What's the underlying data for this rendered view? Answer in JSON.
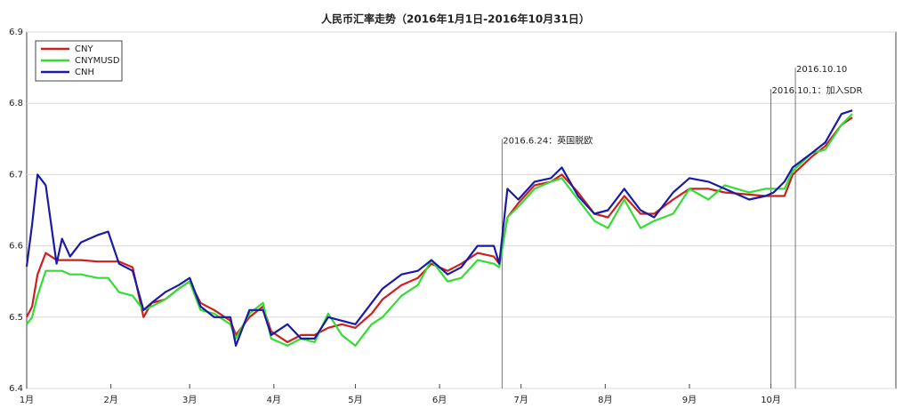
{
  "chart_data": {
    "type": "line",
    "title": "人民币汇率走势（2016年1月1日-2016年10月31日）",
    "x": [
      1,
      3,
      5,
      8,
      12,
      14,
      17,
      21,
      27,
      31,
      35,
      40,
      44,
      47,
      52,
      57,
      61,
      65,
      70,
      76,
      78,
      83,
      88,
      91,
      97,
      102,
      107,
      112,
      117,
      122,
      128,
      132,
      139,
      145,
      150,
      156,
      161,
      167,
      173,
      175,
      178,
      182,
      188,
      194,
      198,
      204,
      210,
      215,
      221,
      227,
      232,
      239,
      245,
      252,
      258,
      267,
      273,
      276,
      280,
      283,
      290,
      295,
      301,
      305
    ],
    "series": [
      {
        "name": "CNY",
        "color": "#cc1f1f",
        "values": [
          6.5,
          6.515,
          6.56,
          6.59,
          6.58,
          6.58,
          6.58,
          6.58,
          6.578,
          6.578,
          6.578,
          6.57,
          6.5,
          6.52,
          6.525,
          6.54,
          6.55,
          6.52,
          6.51,
          6.495,
          6.475,
          6.5,
          6.515,
          6.48,
          6.465,
          6.475,
          6.475,
          6.485,
          6.49,
          6.485,
          6.505,
          6.525,
          6.545,
          6.555,
          6.575,
          6.565,
          6.575,
          6.59,
          6.585,
          6.575,
          6.64,
          6.66,
          6.685,
          6.69,
          6.7,
          6.675,
          6.645,
          6.64,
          6.67,
          6.645,
          6.645,
          6.665,
          6.68,
          6.68,
          6.675,
          6.672,
          6.67,
          6.67,
          6.67,
          6.7,
          6.725,
          6.74,
          6.77,
          6.78
        ]
      },
      {
        "name": "CNYMUSD",
        "color": "#33dd33",
        "values": [
          6.49,
          6.5,
          6.53,
          6.565,
          6.565,
          6.565,
          6.56,
          6.56,
          6.555,
          6.555,
          6.535,
          6.53,
          6.51,
          6.515,
          6.525,
          6.54,
          6.55,
          6.51,
          6.505,
          6.49,
          6.47,
          6.505,
          6.52,
          6.47,
          6.46,
          6.47,
          6.465,
          6.505,
          6.475,
          6.46,
          6.49,
          6.5,
          6.53,
          6.545,
          6.58,
          6.55,
          6.555,
          6.58,
          6.575,
          6.57,
          6.64,
          6.655,
          6.68,
          6.69,
          6.695,
          6.665,
          6.635,
          6.625,
          6.665,
          6.625,
          6.635,
          6.645,
          6.68,
          6.665,
          6.685,
          6.675,
          6.68,
          6.68,
          6.68,
          6.705,
          6.73,
          6.735,
          6.77,
          6.785
        ]
      },
      {
        "name": "CNH",
        "color": "#1a1aa6",
        "values": [
          6.571,
          6.63,
          6.7,
          6.685,
          6.575,
          6.61,
          6.585,
          6.605,
          6.615,
          6.62,
          6.575,
          6.565,
          6.51,
          6.52,
          6.535,
          6.545,
          6.555,
          6.515,
          6.5,
          6.5,
          6.46,
          6.51,
          6.51,
          6.475,
          6.49,
          6.47,
          6.47,
          6.5,
          6.495,
          6.49,
          6.52,
          6.54,
          6.56,
          6.565,
          6.58,
          6.56,
          6.57,
          6.6,
          6.6,
          6.575,
          6.68,
          6.665,
          6.69,
          6.695,
          6.71,
          6.67,
          6.645,
          6.65,
          6.68,
          6.65,
          6.64,
          6.675,
          6.695,
          6.69,
          6.68,
          6.665,
          6.67,
          6.675,
          6.69,
          6.71,
          6.73,
          6.745,
          6.785,
          6.79
        ]
      }
    ],
    "xlim": [
      1,
      321
    ],
    "xticks": [
      {
        "value": 1,
        "label": "1月"
      },
      {
        "value": 32,
        "label": "2月"
      },
      {
        "value": 61,
        "label": "3月"
      },
      {
        "value": 92,
        "label": "4月"
      },
      {
        "value": 122,
        "label": "5月"
      },
      {
        "value": 153,
        "label": "6月"
      },
      {
        "value": 183,
        "label": "7月"
      },
      {
        "value": 214,
        "label": "8月"
      },
      {
        "value": 245,
        "label": "9月"
      },
      {
        "value": 275,
        "label": "10月"
      }
    ],
    "ylim": [
      6.4,
      6.9
    ],
    "yticks": [
      6.4,
      6.5,
      6.6,
      6.7,
      6.8,
      6.9
    ],
    "grid": true,
    "legend": "upper left",
    "annotations": [
      {
        "text": "2016.6.24：英国脱欧",
        "x": 176,
        "y": 6.75
      },
      {
        "text": "2016.10.1：加入SDR",
        "x": 275,
        "y": 6.82
      },
      {
        "text": "2016.10.10",
        "x": 284,
        "y": 6.85
      }
    ]
  }
}
